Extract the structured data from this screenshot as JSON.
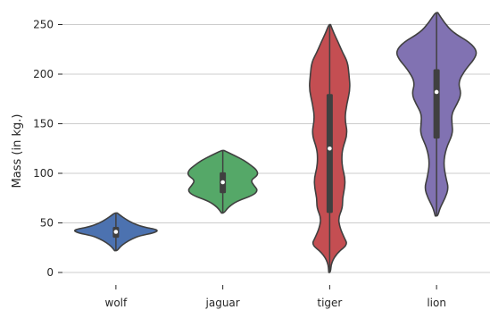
{
  "chart_data": {
    "type": "violin",
    "title": "",
    "xlabel": "",
    "ylabel": "Mass (in kg.)",
    "ylim": [
      0,
      250
    ],
    "yticks": [
      0,
      50,
      100,
      150,
      200,
      250
    ],
    "grid": "horizontal",
    "categories": [
      "wolf",
      "jaguar",
      "tiger",
      "lion"
    ],
    "colors": [
      "#4c72b0",
      "#55a868",
      "#c44e52",
      "#8172b2"
    ],
    "edge_color": "#404040",
    "violins": [
      {
        "name": "wolf",
        "min": 22,
        "q1": 35,
        "median": 41,
        "q3": 46,
        "max": 60,
        "profile": [
          [
            22,
            0.03
          ],
          [
            26,
            0.1
          ],
          [
            30,
            0.22
          ],
          [
            34,
            0.38
          ],
          [
            37,
            0.55
          ],
          [
            40,
            0.9
          ],
          [
            43,
            1.0
          ],
          [
            46,
            0.62
          ],
          [
            50,
            0.38
          ],
          [
            54,
            0.22
          ],
          [
            57,
            0.12
          ],
          [
            60,
            0.03
          ]
        ]
      },
      {
        "name": "jaguar",
        "min": 60,
        "q1": 80,
        "median": 91,
        "q3": 101,
        "max": 123,
        "profile": [
          [
            60,
            0.03
          ],
          [
            66,
            0.13
          ],
          [
            72,
            0.33
          ],
          [
            78,
            0.72
          ],
          [
            83,
            0.82
          ],
          [
            88,
            0.72
          ],
          [
            93,
            0.65
          ],
          [
            98,
            0.82
          ],
          [
            103,
            0.8
          ],
          [
            108,
            0.66
          ],
          [
            113,
            0.5
          ],
          [
            118,
            0.27
          ],
          [
            123,
            0.03
          ]
        ]
      },
      {
        "name": "tiger",
        "min": 0,
        "q1": 60,
        "median": 125,
        "q3": 180,
        "max": 250,
        "profile": [
          [
            0,
            0.02
          ],
          [
            10,
            0.04
          ],
          [
            20,
            0.18
          ],
          [
            28,
            0.42
          ],
          [
            35,
            0.34
          ],
          [
            45,
            0.24
          ],
          [
            55,
            0.2
          ],
          [
            65,
            0.3
          ],
          [
            75,
            0.3
          ],
          [
            85,
            0.35
          ],
          [
            95,
            0.36
          ],
          [
            105,
            0.3
          ],
          [
            115,
            0.28
          ],
          [
            125,
            0.3
          ],
          [
            140,
            0.42
          ],
          [
            155,
            0.35
          ],
          [
            170,
            0.4
          ],
          [
            185,
            0.48
          ],
          [
            200,
            0.45
          ],
          [
            212,
            0.42
          ],
          [
            222,
            0.3
          ],
          [
            232,
            0.2
          ],
          [
            242,
            0.09
          ],
          [
            250,
            0.02
          ]
        ]
      },
      {
        "name": "lion",
        "min": 57,
        "q1": 135,
        "median": 182,
        "q3": 205,
        "max": 262,
        "profile": [
          [
            57,
            0.03
          ],
          [
            65,
            0.08
          ],
          [
            75,
            0.2
          ],
          [
            85,
            0.28
          ],
          [
            95,
            0.22
          ],
          [
            110,
            0.16
          ],
          [
            125,
            0.22
          ],
          [
            140,
            0.38
          ],
          [
            150,
            0.36
          ],
          [
            160,
            0.35
          ],
          [
            170,
            0.48
          ],
          [
            180,
            0.58
          ],
          [
            192,
            0.5
          ],
          [
            205,
            0.68
          ],
          [
            215,
            0.88
          ],
          [
            223,
            0.95
          ],
          [
            232,
            0.78
          ],
          [
            242,
            0.38
          ],
          [
            252,
            0.18
          ],
          [
            262,
            0.03
          ]
        ]
      }
    ]
  }
}
